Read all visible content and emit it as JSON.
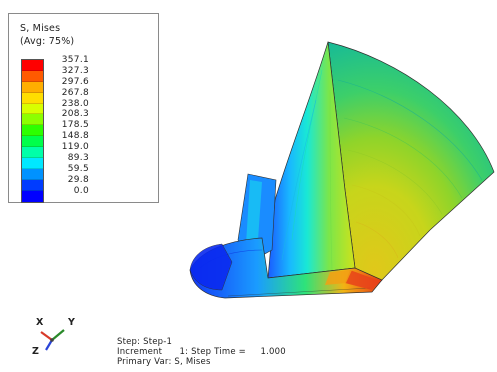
{
  "legend": {
    "title": "S, Mises",
    "subtitle": "(Avg: 75%)",
    "levels": [
      {
        "value": "357.1",
        "color": "#ff0000"
      },
      {
        "value": "327.3",
        "color": "#ff5a00"
      },
      {
        "value": "297.6",
        "color": "#ffae00"
      },
      {
        "value": "267.8",
        "color": "#ffde00"
      },
      {
        "value": "238.0",
        "color": "#d8ff00"
      },
      {
        "value": "208.3",
        "color": "#8cff00"
      },
      {
        "value": "178.5",
        "color": "#2dff00"
      },
      {
        "value": "148.8",
        "color": "#00ff4a"
      },
      {
        "value": "119.0",
        "color": "#00ffa8"
      },
      {
        "value": "89.3",
        "color": "#00e8ff"
      },
      {
        "value": "59.5",
        "color": "#0092ff"
      },
      {
        "value": "29.8",
        "color": "#003cff"
      },
      {
        "value": "0.0",
        "color": "#0000ff"
      }
    ]
  },
  "triad": {
    "x_label": "X",
    "y_label": "Y",
    "z_label": "Z",
    "x_color": "#d83a2a",
    "y_color": "#2a8a2a",
    "z_color": "#2a44d8"
  },
  "info": {
    "step": "Step: Step-1",
    "increment": "Increment      1: Step Time =     1.000",
    "primary_var": "Primary Var: S, Mises"
  }
}
